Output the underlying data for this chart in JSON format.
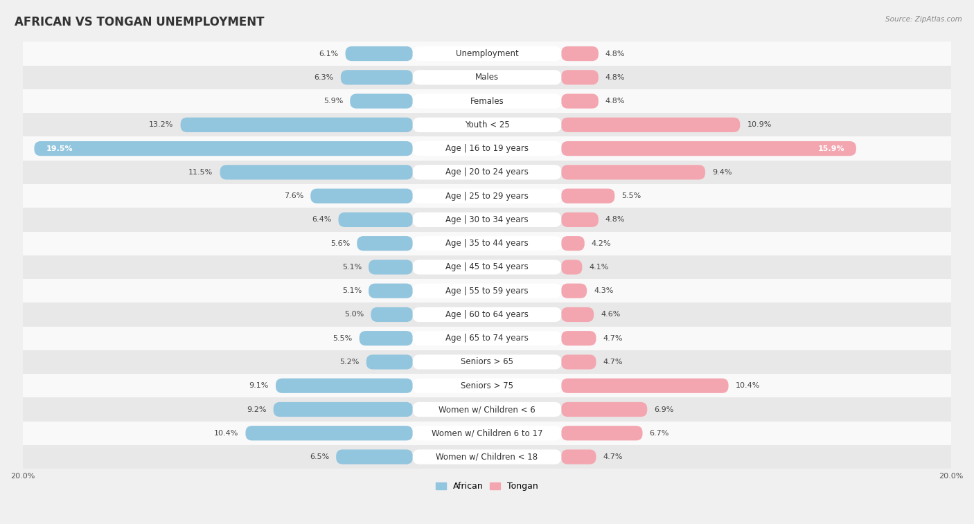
{
  "title": "AFRICAN VS TONGAN UNEMPLOYMENT",
  "source": "Source: ZipAtlas.com",
  "categories": [
    "Unemployment",
    "Males",
    "Females",
    "Youth < 25",
    "Age | 16 to 19 years",
    "Age | 20 to 24 years",
    "Age | 25 to 29 years",
    "Age | 30 to 34 years",
    "Age | 35 to 44 years",
    "Age | 45 to 54 years",
    "Age | 55 to 59 years",
    "Age | 60 to 64 years",
    "Age | 65 to 74 years",
    "Seniors > 65",
    "Seniors > 75",
    "Women w/ Children < 6",
    "Women w/ Children 6 to 17",
    "Women w/ Children < 18"
  ],
  "african_values": [
    6.1,
    6.3,
    5.9,
    13.2,
    19.5,
    11.5,
    7.6,
    6.4,
    5.6,
    5.1,
    5.1,
    5.0,
    5.5,
    5.2,
    9.1,
    9.2,
    10.4,
    6.5
  ],
  "tongan_values": [
    4.8,
    4.8,
    4.8,
    10.9,
    15.9,
    9.4,
    5.5,
    4.8,
    4.2,
    4.1,
    4.3,
    4.6,
    4.7,
    4.7,
    10.4,
    6.9,
    6.7,
    4.7
  ],
  "african_color": "#92c5de",
  "tongan_color": "#f4a6b0",
  "african_label": "African",
  "tongan_label": "Tongan",
  "axis_max": 20.0,
  "background_color": "#f0f0f0",
  "row_color_light": "#f9f9f9",
  "row_color_dark": "#e8e8e8",
  "title_fontsize": 12,
  "label_fontsize": 8.5,
  "value_fontsize": 8
}
